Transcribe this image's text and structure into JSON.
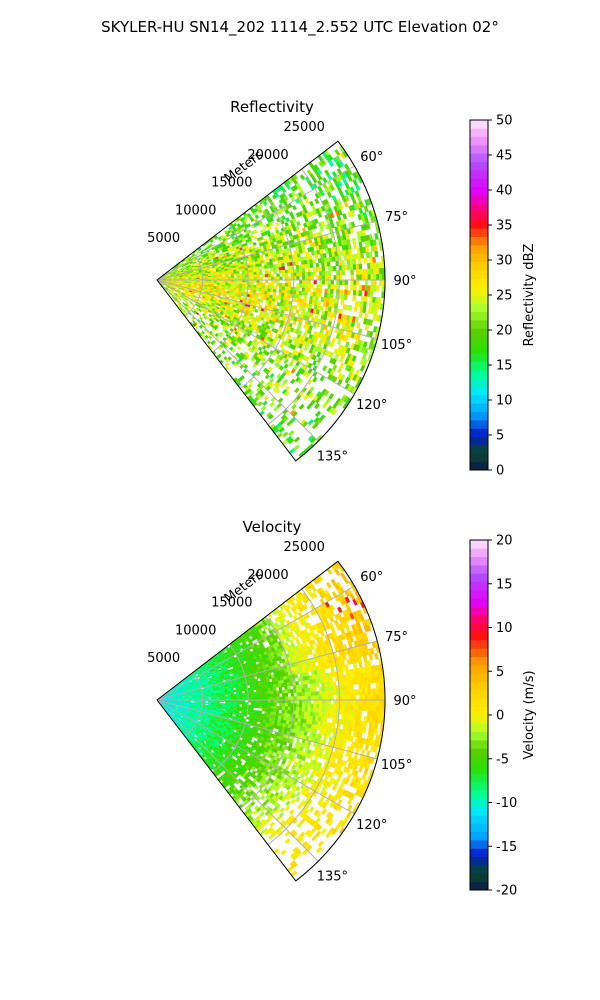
{
  "figure": {
    "suptitle": "SKYLER-HU  SN14_202  1114_2.552 UTC Elevation 02°"
  },
  "chart_data": [
    {
      "type": "heatmap",
      "projection": "polar-sector",
      "title": "Reflectivity",
      "radial_axis_label": "Meters",
      "radial_ticks": [
        5000,
        10000,
        15000,
        20000,
        25000
      ],
      "radial_range": [
        0,
        25000
      ],
      "angle_ticks_deg": [
        60,
        75,
        90,
        105,
        120,
        135
      ],
      "angle_range_deg": [
        52.5,
        142.5
      ],
      "grid": true,
      "colorbar": {
        "label": "Reflectivity dBZ",
        "range": [
          0,
          50
        ],
        "ticks": [
          0,
          5,
          10,
          15,
          20,
          25,
          30,
          35,
          40,
          45,
          50
        ],
        "stops": [
          {
            "v": 0,
            "c": "#0a1a4a"
          },
          {
            "v": 2.5,
            "c": "#0a4a2a"
          },
          {
            "v": 5,
            "c": "#0018c8"
          },
          {
            "v": 8,
            "c": "#00a0ff"
          },
          {
            "v": 11,
            "c": "#00e8ff"
          },
          {
            "v": 14,
            "c": "#00ff90"
          },
          {
            "v": 17,
            "c": "#2ce000"
          },
          {
            "v": 20,
            "c": "#5ad000"
          },
          {
            "v": 23,
            "c": "#a8ff30"
          },
          {
            "v": 26,
            "c": "#fff000"
          },
          {
            "v": 29,
            "c": "#ffd000"
          },
          {
            "v": 32,
            "c": "#ff9c00"
          },
          {
            "v": 35,
            "c": "#ff1010"
          },
          {
            "v": 37,
            "c": "#ff0070"
          },
          {
            "v": 40,
            "c": "#e000ff"
          },
          {
            "v": 44,
            "c": "#b050ff"
          },
          {
            "v": 47,
            "c": "#f090ff"
          },
          {
            "v": 50,
            "c": "#ffe8ff"
          }
        ]
      },
      "field_profile": [
        {
          "angle_deg": 60,
          "coverage": 0.55,
          "value": 21
        },
        {
          "angle_deg": 75,
          "coverage": 0.8,
          "value": 24
        },
        {
          "angle_deg": 90,
          "coverage": 0.85,
          "value": 26
        },
        {
          "angle_deg": 105,
          "coverage": 0.8,
          "value": 27
        },
        {
          "angle_deg": 120,
          "coverage": 0.6,
          "value": 24
        },
        {
          "angle_deg": 135,
          "coverage": 0.35,
          "value": 22
        }
      ]
    },
    {
      "type": "heatmap",
      "projection": "polar-sector",
      "title": "Velocity",
      "radial_axis_label": "Meters",
      "radial_ticks": [
        5000,
        10000,
        15000,
        20000,
        25000
      ],
      "radial_range": [
        0,
        25000
      ],
      "angle_ticks_deg": [
        60,
        75,
        90,
        105,
        120,
        135
      ],
      "angle_range_deg": [
        52.5,
        142.5
      ],
      "grid": true,
      "colorbar": {
        "label": "Velocity (m/s)",
        "range": [
          -20,
          20
        ],
        "ticks": [
          -20,
          -15,
          -10,
          -5,
          0,
          5,
          10,
          15,
          20
        ],
        "stops": [
          {
            "v": -20,
            "c": "#0a1a4a"
          },
          {
            "v": -18,
            "c": "#0a4a2a"
          },
          {
            "v": -16,
            "c": "#0018c8"
          },
          {
            "v": -14,
            "c": "#00a0ff"
          },
          {
            "v": -11,
            "c": "#00e8ff"
          },
          {
            "v": -9,
            "c": "#00ff90"
          },
          {
            "v": -6,
            "c": "#2ce000"
          },
          {
            "v": -4,
            "c": "#5ad000"
          },
          {
            "v": -2,
            "c": "#a8ff30"
          },
          {
            "v": 0,
            "c": "#fff000"
          },
          {
            "v": 3,
            "c": "#ffd000"
          },
          {
            "v": 6,
            "c": "#ff9c00"
          },
          {
            "v": 9,
            "c": "#ff1010"
          },
          {
            "v": 11,
            "c": "#ff0070"
          },
          {
            "v": 13,
            "c": "#e000ff"
          },
          {
            "v": 16,
            "c": "#b050ff"
          },
          {
            "v": 18,
            "c": "#f090ff"
          },
          {
            "v": 20,
            "c": "#ffe8ff"
          }
        ]
      },
      "field_profile": [
        {
          "range_m": 0,
          "value": -11
        },
        {
          "range_m": 5000,
          "value": -9
        },
        {
          "range_m": 10000,
          "value": -6
        },
        {
          "range_m": 15000,
          "value": -3
        },
        {
          "range_m": 20000,
          "value": 0
        },
        {
          "range_m": 25000,
          "value": 2
        }
      ]
    }
  ]
}
